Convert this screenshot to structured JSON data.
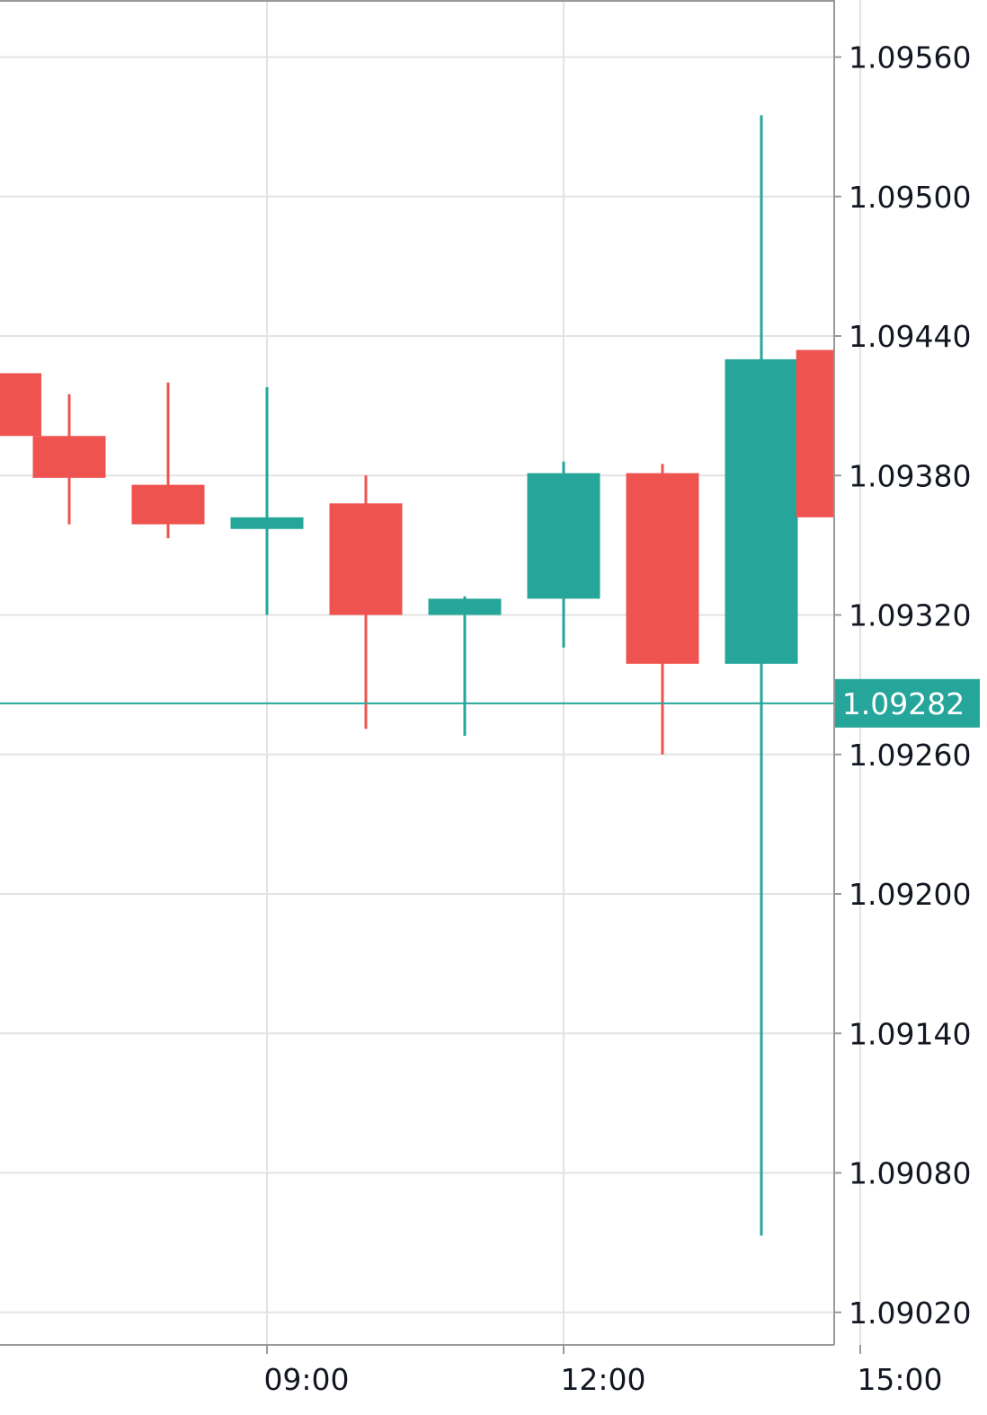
{
  "chart_data": {
    "type": "candlestick",
    "title": "",
    "xlabel": "",
    "ylabel": "",
    "grid": true,
    "y_axis_side": "right",
    "ylim": [
      1.09,
      1.0958
    ],
    "y_ticks": [
      "1.09560",
      "1.09500",
      "1.09440",
      "1.09380",
      "1.09320",
      "1.09260",
      "1.09200",
      "1.09140",
      "1.09080",
      "1.09020"
    ],
    "x_ticks": [
      {
        "label": "09:00",
        "slot": 1.0
      },
      {
        "label": "12:00",
        "slot": 4.0
      },
      {
        "label": "15:00",
        "slot": 7.0
      }
    ],
    "candles": [
      {
        "slot": -1.65,
        "open": 1.09424,
        "high": 1.09424,
        "low": 1.09397,
        "close": 1.09397
      },
      {
        "slot": -1.0,
        "open": 1.09397,
        "high": 1.09415,
        "low": 1.09359,
        "close": 1.09379
      },
      {
        "slot": 0.0,
        "open": 1.09376,
        "high": 1.0942,
        "low": 1.09353,
        "close": 1.09359
      },
      {
        "slot": 1.0,
        "open": 1.09357,
        "high": 1.09418,
        "low": 1.0932,
        "close": 1.09362
      },
      {
        "slot": 2.0,
        "open": 1.09368,
        "high": 1.0938,
        "low": 1.09271,
        "close": 1.0932
      },
      {
        "slot": 3.0,
        "open": 1.0932,
        "high": 1.09328,
        "low": 1.09268,
        "close": 1.09327
      },
      {
        "slot": 4.0,
        "open": 1.09327,
        "high": 1.09386,
        "low": 1.09306,
        "close": 1.09381
      },
      {
        "slot": 5.0,
        "open": 1.09381,
        "high": 1.09385,
        "low": 1.0926,
        "close": 1.09299
      },
      {
        "slot": 6.0,
        "open": 1.09299,
        "high": 1.09535,
        "low": 1.09053,
        "close": 1.0943
      },
      {
        "slot": 6.72,
        "open": 1.09434,
        "high": 1.09434,
        "low": 1.09362,
        "close": 1.09362
      }
    ],
    "last_price": {
      "value": 1.09282,
      "label": "1.09282"
    },
    "colors": {
      "up": "#26a69a",
      "down": "#ef5350",
      "grid": "#e3e3e3",
      "axis": "#9a9a9a",
      "text": "#131722",
      "price_tag_bg": "#26a69a",
      "price_tag_text": "#ffffff"
    }
  }
}
